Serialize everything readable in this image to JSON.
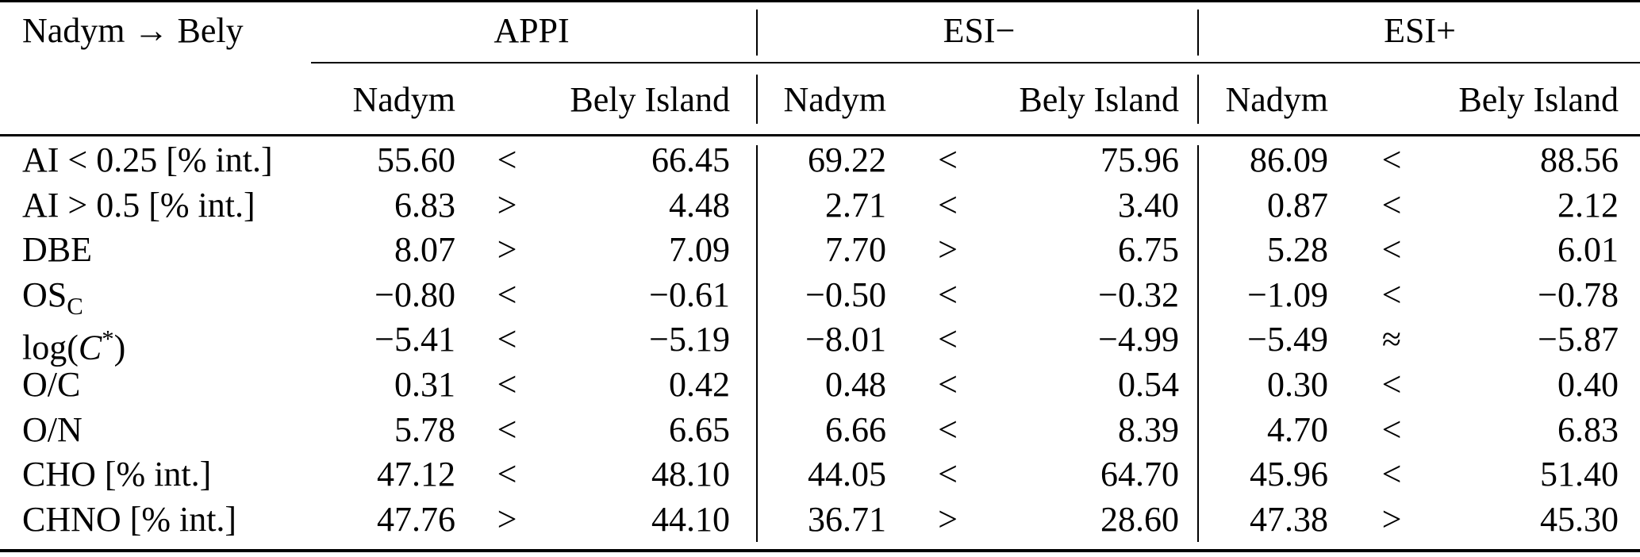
{
  "colors": {
    "text": "#000000",
    "background": "#ffffff",
    "rule": "#000000"
  },
  "table": {
    "corner": "Nadym → Bely",
    "groups": [
      {
        "label": "APPI",
        "site1": "Nadym",
        "site2": "Bely Island"
      },
      {
        "label": "ESI−",
        "site1": "Nadym",
        "site2": "Bely Island"
      },
      {
        "label": "ESI+",
        "site1": "Nadym",
        "site2": "Bely Island"
      }
    ],
    "rows": [
      {
        "label_parts": [
          {
            "t": "AI < 0.25 [% int.]",
            "s": ""
          }
        ],
        "cells": [
          {
            "left": "55.60",
            "rel": "<",
            "right": "66.45"
          },
          {
            "left": "69.22",
            "rel": "<",
            "right": "75.96"
          },
          {
            "left": "86.09",
            "rel": "<",
            "right": "88.56"
          }
        ]
      },
      {
        "label_parts": [
          {
            "t": "AI > 0.5 [% int.]",
            "s": ""
          }
        ],
        "cells": [
          {
            "left": "6.83",
            "rel": ">",
            "right": "4.48"
          },
          {
            "left": "2.71",
            "rel": "<",
            "right": "3.40"
          },
          {
            "left": "0.87",
            "rel": "<",
            "right": "2.12"
          }
        ]
      },
      {
        "label_parts": [
          {
            "t": "DBE",
            "s": ""
          }
        ],
        "cells": [
          {
            "left": "8.07",
            "rel": ">",
            "right": "7.09"
          },
          {
            "left": "7.70",
            "rel": ">",
            "right": "6.75"
          },
          {
            "left": "5.28",
            "rel": "<",
            "right": "6.01"
          }
        ]
      },
      {
        "label_parts": [
          {
            "t": "OS",
            "s": ""
          },
          {
            "t": "C",
            "s": "sub"
          }
        ],
        "cells": [
          {
            "left": "−0.80",
            "rel": "<",
            "right": "−0.61"
          },
          {
            "left": "−0.50",
            "rel": "<",
            "right": "−0.32"
          },
          {
            "left": "−1.09",
            "rel": "<",
            "right": "−0.78"
          }
        ]
      },
      {
        "label_parts": [
          {
            "t": "log(",
            "s": ""
          },
          {
            "t": "C",
            "s": "it"
          },
          {
            "t": "*",
            "s": "sup"
          },
          {
            "t": ")",
            "s": ""
          }
        ],
        "cells": [
          {
            "left": "−5.41",
            "rel": "<",
            "right": "−5.19"
          },
          {
            "left": "−8.01",
            "rel": "<",
            "right": "−4.99"
          },
          {
            "left": "−5.49",
            "rel": "≈",
            "right": "−5.87"
          }
        ]
      },
      {
        "label_parts": [
          {
            "t": "O/C",
            "s": ""
          }
        ],
        "cells": [
          {
            "left": "0.31",
            "rel": "<",
            "right": "0.42"
          },
          {
            "left": "0.48",
            "rel": "<",
            "right": "0.54"
          },
          {
            "left": "0.30",
            "rel": "<",
            "right": "0.40"
          }
        ]
      },
      {
        "label_parts": [
          {
            "t": "O/N",
            "s": ""
          }
        ],
        "cells": [
          {
            "left": "5.78",
            "rel": "<",
            "right": "6.65"
          },
          {
            "left": "6.66",
            "rel": "<",
            "right": "8.39"
          },
          {
            "left": "4.70",
            "rel": "<",
            "right": "6.83"
          }
        ]
      },
      {
        "label_parts": [
          {
            "t": "CHO [% int.]",
            "s": ""
          }
        ],
        "cells": [
          {
            "left": "47.12",
            "rel": "<",
            "right": "48.10"
          },
          {
            "left": "44.05",
            "rel": "<",
            "right": "64.70"
          },
          {
            "left": "45.96",
            "rel": "<",
            "right": "51.40"
          }
        ]
      },
      {
        "label_parts": [
          {
            "t": "CHNO [% int.]",
            "s": ""
          }
        ],
        "cells": [
          {
            "left": "47.76",
            "rel": ">",
            "right": "44.10"
          },
          {
            "left": "36.71",
            "rel": ">",
            "right": "28.60"
          },
          {
            "left": "47.38",
            "rel": ">",
            "right": "45.30"
          }
        ]
      }
    ]
  }
}
